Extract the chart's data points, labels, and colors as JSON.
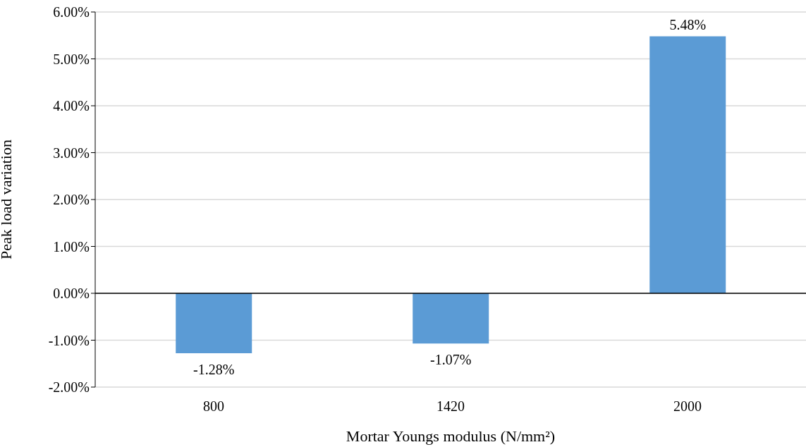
{
  "chart_data": {
    "type": "bar",
    "xlabel": "Mortar Youngs modulus (N/mm²)",
    "ylabel": "Peak load variation",
    "categories": [
      "800",
      "1420",
      "2000"
    ],
    "values": [
      -1.28,
      -1.07,
      5.48
    ],
    "value_labels": [
      "-1.28%",
      "-1.07%",
      "5.48%"
    ],
    "color": "#5b9bd5",
    "ylim": [
      -2,
      6
    ],
    "yticks": [
      {
        "value": -2,
        "label": "-2.00%"
      },
      {
        "value": -1,
        "label": "-1.00%"
      },
      {
        "value": 0,
        "label": "0.00%"
      },
      {
        "value": 1,
        "label": "1.00%"
      },
      {
        "value": 2,
        "label": "2.00%"
      },
      {
        "value": 3,
        "label": "3.00%"
      },
      {
        "value": 4,
        "label": "4.00%"
      },
      {
        "value": 5,
        "label": "5.00%"
      },
      {
        "value": 6,
        "label": "6.00%"
      }
    ],
    "grid": "y"
  }
}
